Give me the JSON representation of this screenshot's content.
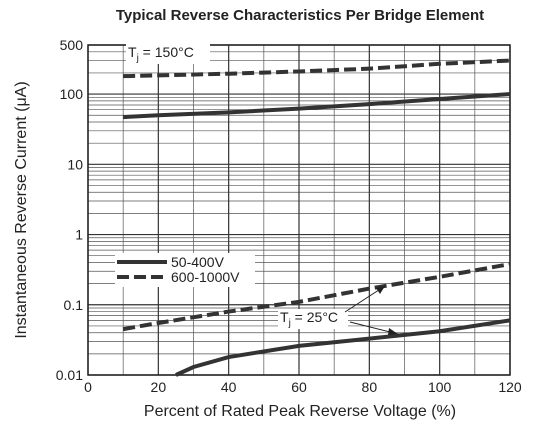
{
  "chart_data": {
    "type": "line",
    "title": "Typical Reverse Characteristics Per Bridge Element",
    "x_label": "Percent of Rated Peak Reverse Voltage (%)",
    "y_label": "Instantaneous Reverse Current (μA)",
    "xlim": [
      0,
      120
    ],
    "xticks": [
      0,
      20,
      40,
      60,
      80,
      100,
      120
    ],
    "ylim": [
      0.01,
      500
    ],
    "yticks": [
      0.01,
      0.1,
      1,
      10,
      100,
      500
    ],
    "log_y": true,
    "grid": true,
    "legend": "lower-left",
    "series": [
      {
        "name": "50-400V",
        "dash": false,
        "color": "#333333",
        "x": [
          10,
          20,
          40,
          60,
          80,
          100,
          120
        ],
        "values": [
          47,
          50,
          55,
          62,
          72,
          85,
          100
        ]
      },
      {
        "name": "600-1000V",
        "dash": true,
        "color": "#333333",
        "x": [
          10,
          20,
          40,
          60,
          80,
          100,
          120
        ],
        "values": [
          180,
          185,
          195,
          210,
          230,
          270,
          300
        ]
      },
      {
        "dash": false,
        "color": "#333333",
        "x": [
          25,
          30,
          40,
          60,
          80,
          100,
          120
        ],
        "values": [
          0.01,
          0.013,
          0.018,
          0.026,
          0.033,
          0.042,
          0.06
        ]
      },
      {
        "dash": true,
        "color": "#333333",
        "x": [
          10,
          20,
          40,
          60,
          80,
          100,
          120
        ],
        "values": [
          0.045,
          0.055,
          0.08,
          0.11,
          0.17,
          0.25,
          0.38
        ]
      }
    ],
    "annotations": [
      {
        "text": "T",
        "sub": "j",
        "rest": " = 150°C"
      },
      {
        "text": "T",
        "sub": "j",
        "rest": " = 25°C"
      }
    ]
  }
}
